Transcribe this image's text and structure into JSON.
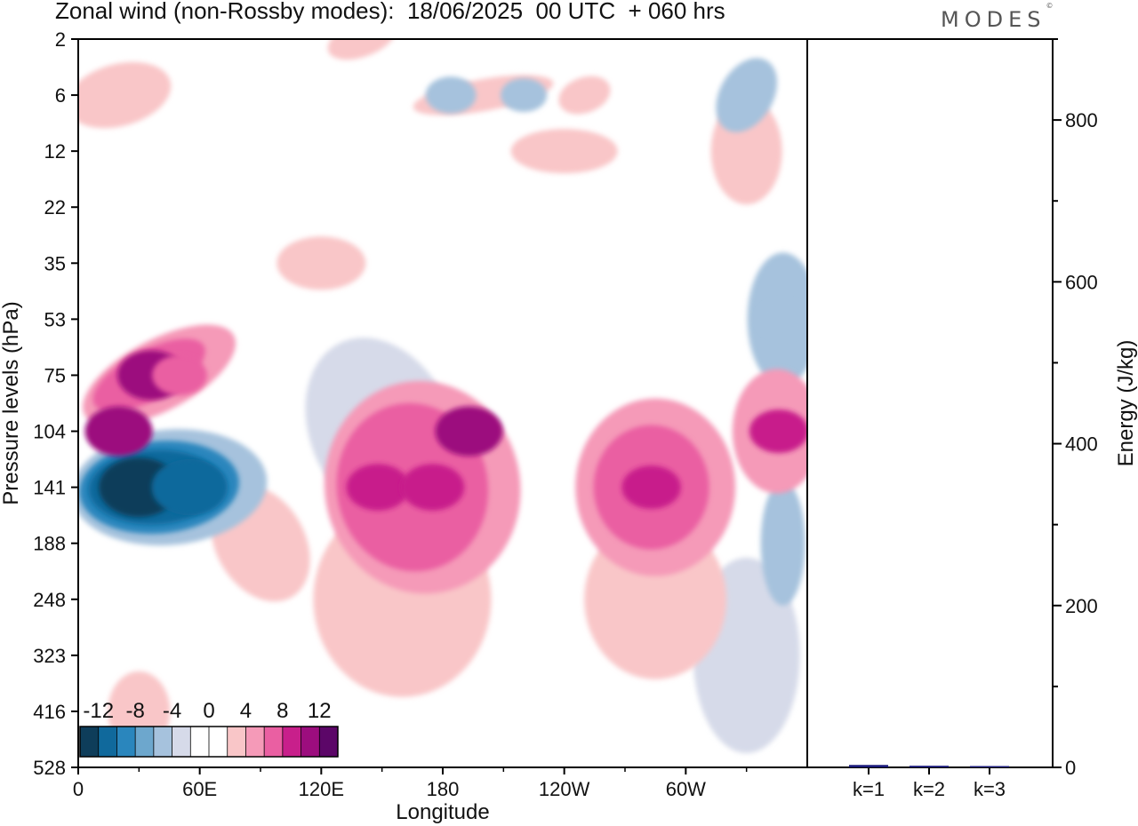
{
  "title": "Zonal wind (non-Rossby modes):  18/06/2025  00 UTC  + 060 hrs",
  "brand": "MODES",
  "brand_mark": "©",
  "chart_data": [
    {
      "type": "heatmap",
      "xlabel": "Longitude",
      "ylabel": "Pressure levels (hPa)",
      "x_ticks": [
        "0",
        "60E",
        "120E",
        "180",
        "120W",
        "60W"
      ],
      "x_tick_values": [
        0,
        60,
        120,
        180,
        240,
        300
      ],
      "xlim": [
        0,
        360
      ],
      "y_ticks": [
        "2",
        "6",
        "12",
        "22",
        "35",
        "53",
        "75",
        "104",
        "141",
        "188",
        "248",
        "323",
        "416",
        "528"
      ],
      "y_scale": "pressure levels, top to bottom",
      "grid": false,
      "colorbar": {
        "labels": [
          "-12",
          "-8",
          "-4",
          "0",
          "4",
          "8",
          "12"
        ],
        "label_values": [
          -12,
          -8,
          -4,
          0,
          4,
          8,
          12
        ],
        "colors": [
          "#0e3d5a",
          "#10699c",
          "#2a86bd",
          "#6da7cd",
          "#a6c2dd",
          "#d6dae9",
          "#ffffff",
          "#ffffff",
          "#f9c6c8",
          "#f59ab8",
          "#ea5fa2",
          "#c81f8b",
          "#9c0d7e",
          "#5c0668"
        ],
        "placement": "bottom-left"
      },
      "features": [
        {
          "lon": 30,
          "level": "141",
          "value": -13
        },
        {
          "lon": 55,
          "level": "141",
          "value": -12
        },
        {
          "lon": 20,
          "level": "104",
          "value": 10
        },
        {
          "lon": 36,
          "level": "75",
          "value": 10
        },
        {
          "lon": 148,
          "level": "141",
          "value": 9
        },
        {
          "lon": 175,
          "level": "141",
          "value": 9
        },
        {
          "lon": 193,
          "level": "104",
          "value": 10
        },
        {
          "lon": 283,
          "level": "141",
          "value": 8
        },
        {
          "lon": 346,
          "level": "104",
          "value": 8
        },
        {
          "lon": 348,
          "level": "53",
          "value": -6
        },
        {
          "lon": 184,
          "level": "6",
          "value": -6
        },
        {
          "lon": 220,
          "level": "6",
          "value": -5
        },
        {
          "lon": 50,
          "level": "75",
          "value": 7
        }
      ]
    },
    {
      "type": "bar",
      "categories": [
        "k=1",
        "k=2",
        "k=3"
      ],
      "values": [
        3,
        2,
        1
      ],
      "ylabel": "Energy (J/kg)",
      "ylim": [
        0,
        900
      ],
      "y_ticks": [
        0,
        200,
        400,
        600,
        800
      ],
      "bar_color": "#1a1a7a"
    }
  ]
}
